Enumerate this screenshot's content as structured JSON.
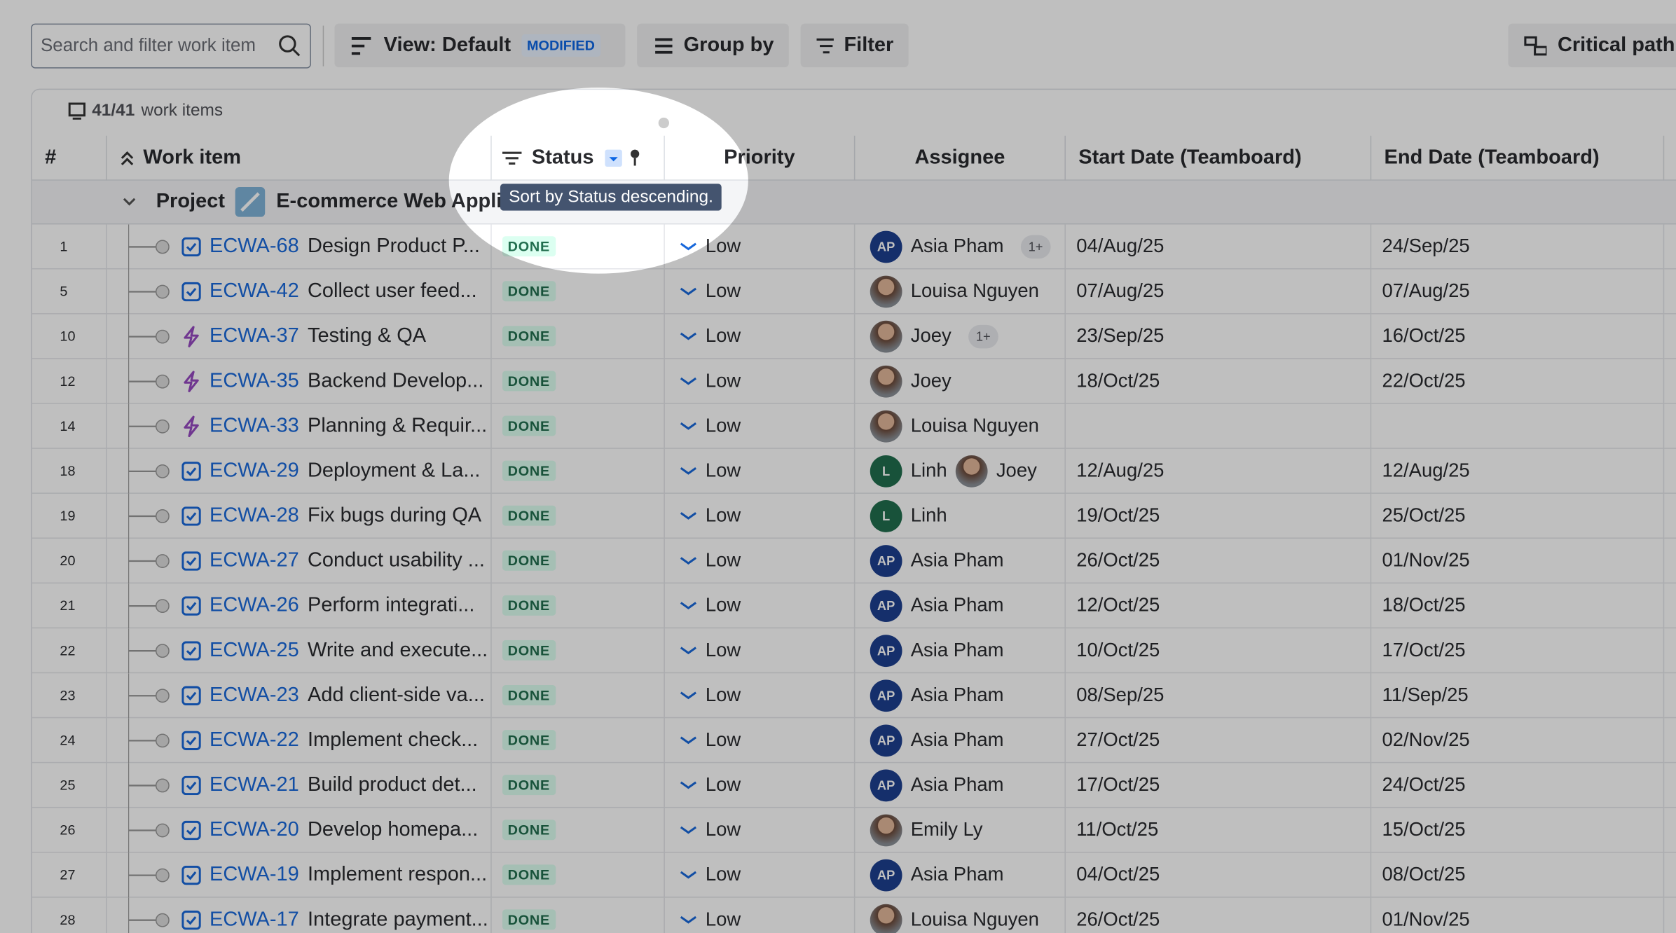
{
  "toolbar": {
    "search_placeholder": "Search and filter work item",
    "view": "View: Default",
    "view_badge": "MODIFIED",
    "group_by": "Group by",
    "filter": "Filter",
    "critical_path": "Critical path"
  },
  "summary": {
    "count": "41/41",
    "label": "work items"
  },
  "table": {
    "headers": [
      "#",
      "Work item",
      "Status",
      "Priority",
      "Assignee",
      "Start Date (Teamboard)",
      "End Date (Teamboard)"
    ],
    "group": {
      "label": "Project",
      "name": "E-commerce Web Applic"
    },
    "rows": [
      {
        "num": "1",
        "icon": "task",
        "key": "ECWA-68",
        "title": "Design Product P...",
        "status": "DONE",
        "priority": "Low",
        "assignees": [
          {
            "avatar": "AP",
            "name": "Asia Pham"
          }
        ],
        "more": "1+",
        "start": "04/Aug/25",
        "end": "24/Sep/25"
      },
      {
        "num": "5",
        "icon": "task",
        "key": "ECWA-42",
        "title": "Collect user feed...",
        "status": "DONE",
        "priority": "Low",
        "assignees": [
          {
            "name": "Louisa Nguyen"
          }
        ],
        "start": "07/Aug/25",
        "end": "07/Aug/25"
      },
      {
        "num": "10",
        "icon": "lightning",
        "key": "ECWA-37",
        "title": "Testing & QA",
        "status": "DONE",
        "priority": "Low",
        "assignees": [
          {
            "name": "Joey"
          }
        ],
        "more": "1+",
        "start": "23/Sep/25",
        "end": "16/Oct/25"
      },
      {
        "num": "12",
        "icon": "lightning",
        "key": "ECWA-35",
        "title": "Backend Develop...",
        "status": "DONE",
        "priority": "Low",
        "assignees": [
          {
            "name": "Joey"
          }
        ],
        "start": "18/Oct/25",
        "end": "22/Oct/25"
      },
      {
        "num": "14",
        "icon": "lightning",
        "key": "ECWA-33",
        "title": "Planning & Requir...",
        "status": "DONE",
        "priority": "Low",
        "assignees": [
          {
            "name": "Louisa Nguyen"
          }
        ]
      },
      {
        "num": "18",
        "icon": "task",
        "key": "ECWA-29",
        "title": "Deployment & La...",
        "status": "DONE",
        "priority": "Low",
        "assignees": [
          {
            "avatar": "L",
            "name": "Linh"
          },
          {
            "name": "Joey"
          }
        ],
        "start": "12/Aug/25",
        "end": "12/Aug/25"
      },
      {
        "num": "19",
        "icon": "task",
        "key": "ECWA-28",
        "title": "Fix bugs during QA",
        "status": "DONE",
        "priority": "Low",
        "assignees": [
          {
            "avatar": "L",
            "name": "Linh"
          }
        ],
        "start": "19/Oct/25",
        "end": "25/Oct/25"
      },
      {
        "num": "20",
        "icon": "task",
        "key": "ECWA-27",
        "title": "Conduct usability ...",
        "status": "DONE",
        "priority": "Low",
        "assignees": [
          {
            "avatar": "AP",
            "name": "Asia Pham"
          }
        ],
        "start": "26/Oct/25",
        "end": "01/Nov/25"
      },
      {
        "num": "21",
        "icon": "task",
        "key": "ECWA-26",
        "title": "Perform integrati...",
        "status": "DONE",
        "priority": "Low",
        "assignees": [
          {
            "avatar": "AP",
            "name": "Asia Pham"
          }
        ],
        "start": "12/Oct/25",
        "end": "18/Oct/25"
      },
      {
        "num": "22",
        "icon": "task",
        "key": "ECWA-25",
        "title": "Write and execute...",
        "status": "DONE",
        "priority": "Low",
        "assignees": [
          {
            "avatar": "AP",
            "name": "Asia Pham"
          }
        ],
        "start": "10/Oct/25",
        "end": "17/Oct/25"
      },
      {
        "num": "23",
        "icon": "task",
        "key": "ECWA-23",
        "title": "Add client-side va...",
        "status": "DONE",
        "priority": "Low",
        "assignees": [
          {
            "avatar": "AP",
            "name": "Asia Pham"
          }
        ],
        "start": "08/Sep/25",
        "end": "11/Sep/25"
      },
      {
        "num": "24",
        "icon": "task",
        "key": "ECWA-22",
        "title": "Implement check...",
        "status": "DONE",
        "priority": "Low",
        "assignees": [
          {
            "avatar": "AP",
            "name": "Asia Pham"
          }
        ],
        "start": "27/Oct/25",
        "end": "02/Nov/25"
      },
      {
        "num": "25",
        "icon": "task",
        "key": "ECWA-21",
        "title": "Build product det...",
        "status": "DONE",
        "priority": "Low",
        "assignees": [
          {
            "avatar": "AP",
            "name": "Asia Pham"
          }
        ],
        "start": "17/Oct/25",
        "end": "24/Oct/25"
      },
      {
        "num": "26",
        "icon": "task",
        "key": "ECWA-20",
        "title": "Develop homepa...",
        "status": "DONE",
        "priority": "Low",
        "assignees": [
          {
            "name": "Emily Ly"
          }
        ],
        "start": "11/Oct/25",
        "end": "15/Oct/25"
      },
      {
        "num": "27",
        "icon": "task",
        "key": "ECWA-19",
        "title": "Implement respon...",
        "status": "DONE",
        "priority": "Low",
        "assignees": [
          {
            "avatar": "AP",
            "name": "Asia Pham"
          }
        ],
        "start": "04/Oct/25",
        "end": "08/Oct/25"
      },
      {
        "num": "28",
        "icon": "task",
        "key": "ECWA-17",
        "title": "Integrate payment...",
        "status": "DONE",
        "priority": "Low",
        "assignees": [
          {
            "name": "Louisa Nguyen"
          }
        ],
        "start": "26/Oct/25",
        "end": "01/Nov/25"
      }
    ]
  },
  "tooltip": "Sort by Status descending."
}
